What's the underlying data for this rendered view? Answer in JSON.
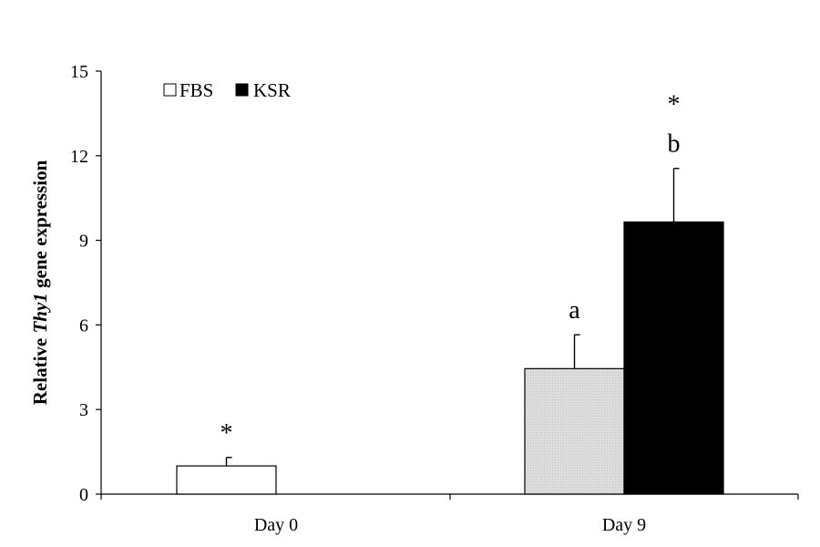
{
  "chart_data": {
    "type": "bar",
    "ylabel": {
      "prefix": "Relative ",
      "gene": "Thy1",
      "suffix": " gene expression"
    },
    "ylim": [
      0,
      15
    ],
    "yticks": [
      0,
      3,
      6,
      9,
      12,
      15
    ],
    "grid": false,
    "legend_position": "top-left",
    "categories": [
      "Day 0",
      "Day 9"
    ],
    "series": [
      {
        "name": "FBS",
        "color": "#d9d9d9",
        "values": [
          1.0,
          4.45
        ],
        "errors": [
          0.3,
          1.2
        ],
        "annotations": [
          "*",
          "a"
        ]
      },
      {
        "name": "KSR",
        "color": "#000000",
        "values": [
          null,
          9.65
        ],
        "errors": [
          null,
          1.9
        ],
        "annotations": [
          "",
          "*\nb"
        ]
      }
    ],
    "day0_bar_fill": "#ffffff"
  }
}
